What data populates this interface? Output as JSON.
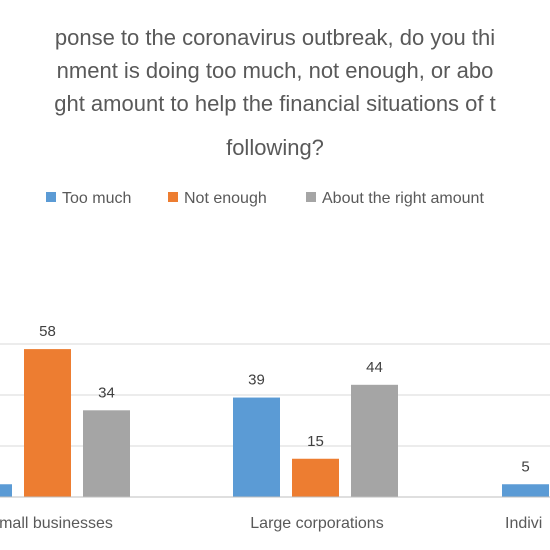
{
  "chart_data": {
    "type": "bar",
    "title_lines": [
      "ponse to the coronavirus outbreak, do you thi",
      "nment is doing too much, not enough, or abo",
      "ght amount to help the financial situations of t",
      "following?"
    ],
    "categories": [
      "mall businesses",
      "Large corporations",
      "Indivi"
    ],
    "series": [
      {
        "name": "Too much",
        "color": "#5b9bd5",
        "values": [
          5,
          39,
          5
        ]
      },
      {
        "name": "Not enough",
        "color": "#ed7d31",
        "values": [
          58,
          15,
          null
        ]
      },
      {
        "name": "About the right amount",
        "color": "#a5a5a5",
        "values": [
          34,
          44,
          null
        ]
      }
    ],
    "data_labels": [
      [
        null,
        "39",
        "5"
      ],
      [
        "58",
        "15",
        null
      ],
      [
        "34",
        "44",
        null
      ]
    ],
    "ylim": [
      0,
      100
    ],
    "grid": true,
    "legend_position": "top",
    "xlabel": "",
    "ylabel": ""
  }
}
